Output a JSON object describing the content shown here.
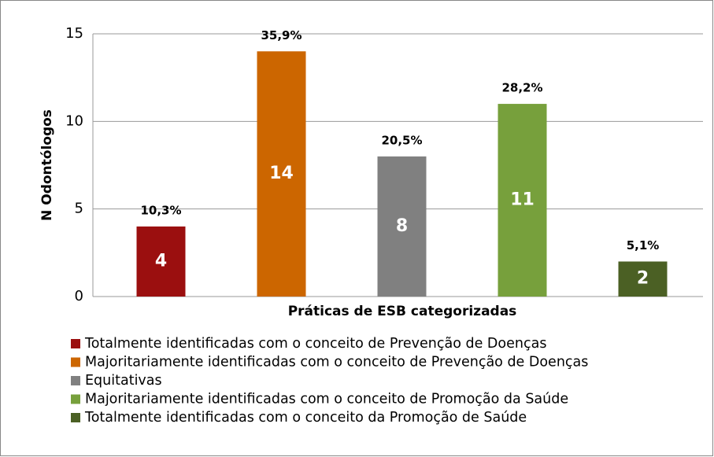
{
  "chart_data": {
    "type": "bar",
    "categories": [
      "Totalmente identificadas com o conceito de Prevenção de Doenças",
      "Majoritariamente identificadas com o conceito de Prevenção de Doenças",
      "Equitativas",
      "Majoritariamente identificadas com o conceito de Promoção da Saúde",
      "Totalmente identificadas com o conceito da Promoção de Saúde"
    ],
    "values": [
      4,
      14,
      8,
      11,
      2
    ],
    "percent_values": [
      10.3,
      35.9,
      20.5,
      28.2,
      5.1
    ],
    "percent_labels": [
      "10,3%",
      "35,9%",
      "20,5%",
      "28,2%",
      "5,1%"
    ],
    "colors": [
      "#9b0f0f",
      "#cc6600",
      "#808080",
      "#77a03c",
      "#4b6024"
    ],
    "xlabel": "Práticas de ESB categorizadas",
    "ylabel": "N Odontólogos",
    "ylim": [
      0,
      15
    ],
    "yticks": [
      0,
      5,
      10,
      15
    ],
    "grid": true,
    "legend": "bottom"
  }
}
